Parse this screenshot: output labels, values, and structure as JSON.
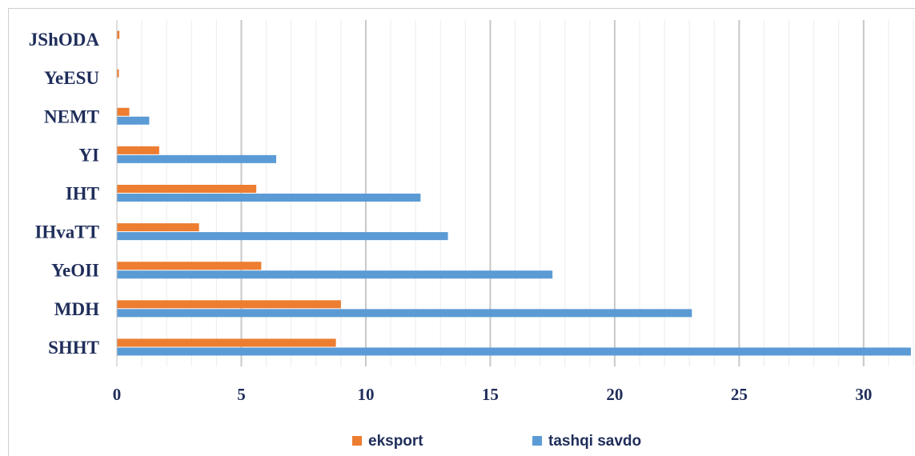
{
  "chart_data": {
    "type": "bar",
    "orientation": "horizontal",
    "categories": [
      "SHHT",
      "MDH",
      "YeOII",
      "IHvaTT",
      "IHT",
      "YI",
      "NEMT",
      "YeESU",
      "JShODA"
    ],
    "series": [
      {
        "name": "eksport",
        "color": "#ed7d31",
        "values": [
          8.8,
          9.0,
          5.8,
          3.3,
          5.6,
          1.7,
          0.5,
          0.05,
          0.1
        ]
      },
      {
        "name": "tashqi savdo",
        "color": "#5b9bd5",
        "values": [
          31.9,
          23.1,
          17.5,
          13.3,
          12.2,
          6.4,
          1.3,
          0,
          0
        ]
      }
    ],
    "xticks": [
      0,
      5,
      10,
      15,
      20,
      25,
      30
    ],
    "xlim": [
      0,
      32
    ],
    "grid": true,
    "legend_position": "bottom",
    "title": "",
    "xlabel": "",
    "ylabel": ""
  }
}
